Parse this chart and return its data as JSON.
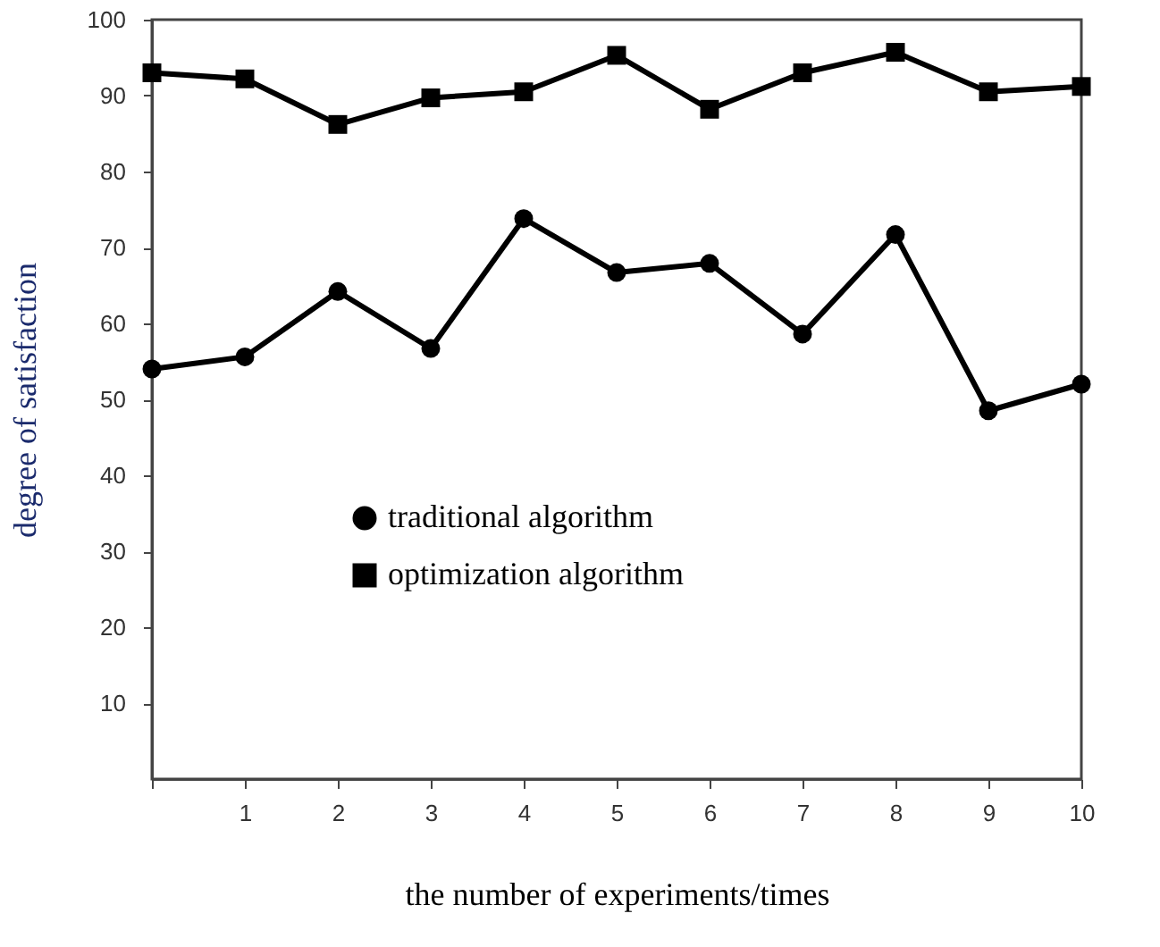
{
  "chart_data": {
    "type": "line",
    "xlabel": "the number of experiments/times",
    "ylabel": "degree of satisfaction",
    "categories": [
      null,
      "1",
      "2",
      "3",
      "4",
      "5",
      "6",
      "7",
      "8",
      "9",
      "10"
    ],
    "series": [
      {
        "name": "traditional algorithm",
        "color": "#000000",
        "marker": "circle",
        "values": [
          54.0,
          55.6,
          64.2,
          56.7,
          73.8,
          66.7,
          67.9,
          58.6,
          71.7,
          48.5,
          52.0
        ]
      },
      {
        "name": "optimization algorithm",
        "color": "#000000",
        "marker": "square",
        "values": [
          93.0,
          92.2,
          86.2,
          89.7,
          90.5,
          95.3,
          88.2,
          93.0,
          95.7,
          90.5,
          91.2
        ]
      }
    ],
    "ylim": [
      0,
      100
    ],
    "yticks": [
      10,
      20,
      30,
      40,
      50,
      60,
      70,
      80,
      90,
      100
    ],
    "grid": false,
    "legend": "bottom",
    "line_style": "solid"
  }
}
